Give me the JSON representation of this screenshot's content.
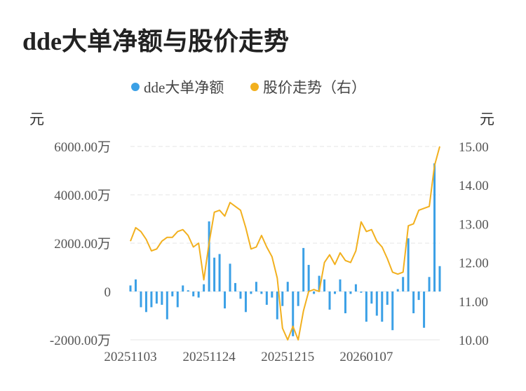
{
  "title": "dde大单净额与股价走势",
  "chart_data": {
    "type": "bar+line",
    "legend": [
      "dde大单净额",
      "股价走势（右）"
    ],
    "legend_position": "top-center",
    "colors": {
      "bar": "#3ba0e6",
      "line": "#f2b01e",
      "grid": "#e6e6e6"
    },
    "y_left": {
      "unit": "元",
      "ticks": [
        "-2000.00万",
        "0",
        "2000.00万",
        "4000.00万",
        "6000.00万"
      ],
      "range": [
        -2000,
        6000
      ]
    },
    "y_right": {
      "unit": "元",
      "ticks": [
        "10.00",
        "11.00",
        "12.00",
        "13.00",
        "14.00",
        "15.00"
      ],
      "range": [
        10,
        15
      ]
    },
    "x_ticks": [
      {
        "label": "20251103",
        "index": 0
      },
      {
        "label": "20251124",
        "index": 15
      },
      {
        "label": "20251215",
        "index": 30
      },
      {
        "label": "20260107",
        "index": 45
      }
    ],
    "grid": true,
    "bars_wan": [
      250,
      500,
      -650,
      -850,
      -650,
      -500,
      -550,
      -1150,
      -200,
      -650,
      250,
      50,
      -200,
      -250,
      300,
      2900,
      1400,
      1550,
      -700,
      1150,
      350,
      -300,
      -850,
      -100,
      400,
      -100,
      -550,
      -250,
      -1150,
      -600,
      400,
      -1850,
      -600,
      1800,
      1100,
      -100,
      650,
      500,
      -750,
      -100,
      500,
      -900,
      -100,
      300,
      -50,
      -1250,
      -500,
      -1000,
      -1250,
      -550,
      -1600,
      100,
      600,
      2200,
      -900,
      -350,
      -1500,
      600,
      5300,
      1050
    ],
    "price": [
      12.55,
      12.9,
      12.8,
      12.6,
      12.3,
      12.35,
      12.55,
      12.65,
      12.65,
      12.8,
      12.85,
      12.7,
      12.4,
      12.5,
      11.55,
      12.5,
      13.3,
      13.35,
      13.2,
      13.55,
      13.45,
      13.35,
      12.9,
      12.35,
      12.4,
      12.7,
      12.4,
      12.15,
      11.6,
      10.3,
      10.0,
      10.35,
      10.0,
      10.75,
      11.25,
      11.3,
      11.25,
      12.0,
      12.2,
      11.95,
      12.25,
      12.05,
      12.0,
      12.3,
      13.05,
      12.8,
      12.85,
      12.55,
      12.4,
      12.1,
      11.75,
      11.7,
      11.75,
      12.95,
      13.0,
      13.35,
      13.4,
      13.45,
      14.5,
      15.0
    ]
  }
}
